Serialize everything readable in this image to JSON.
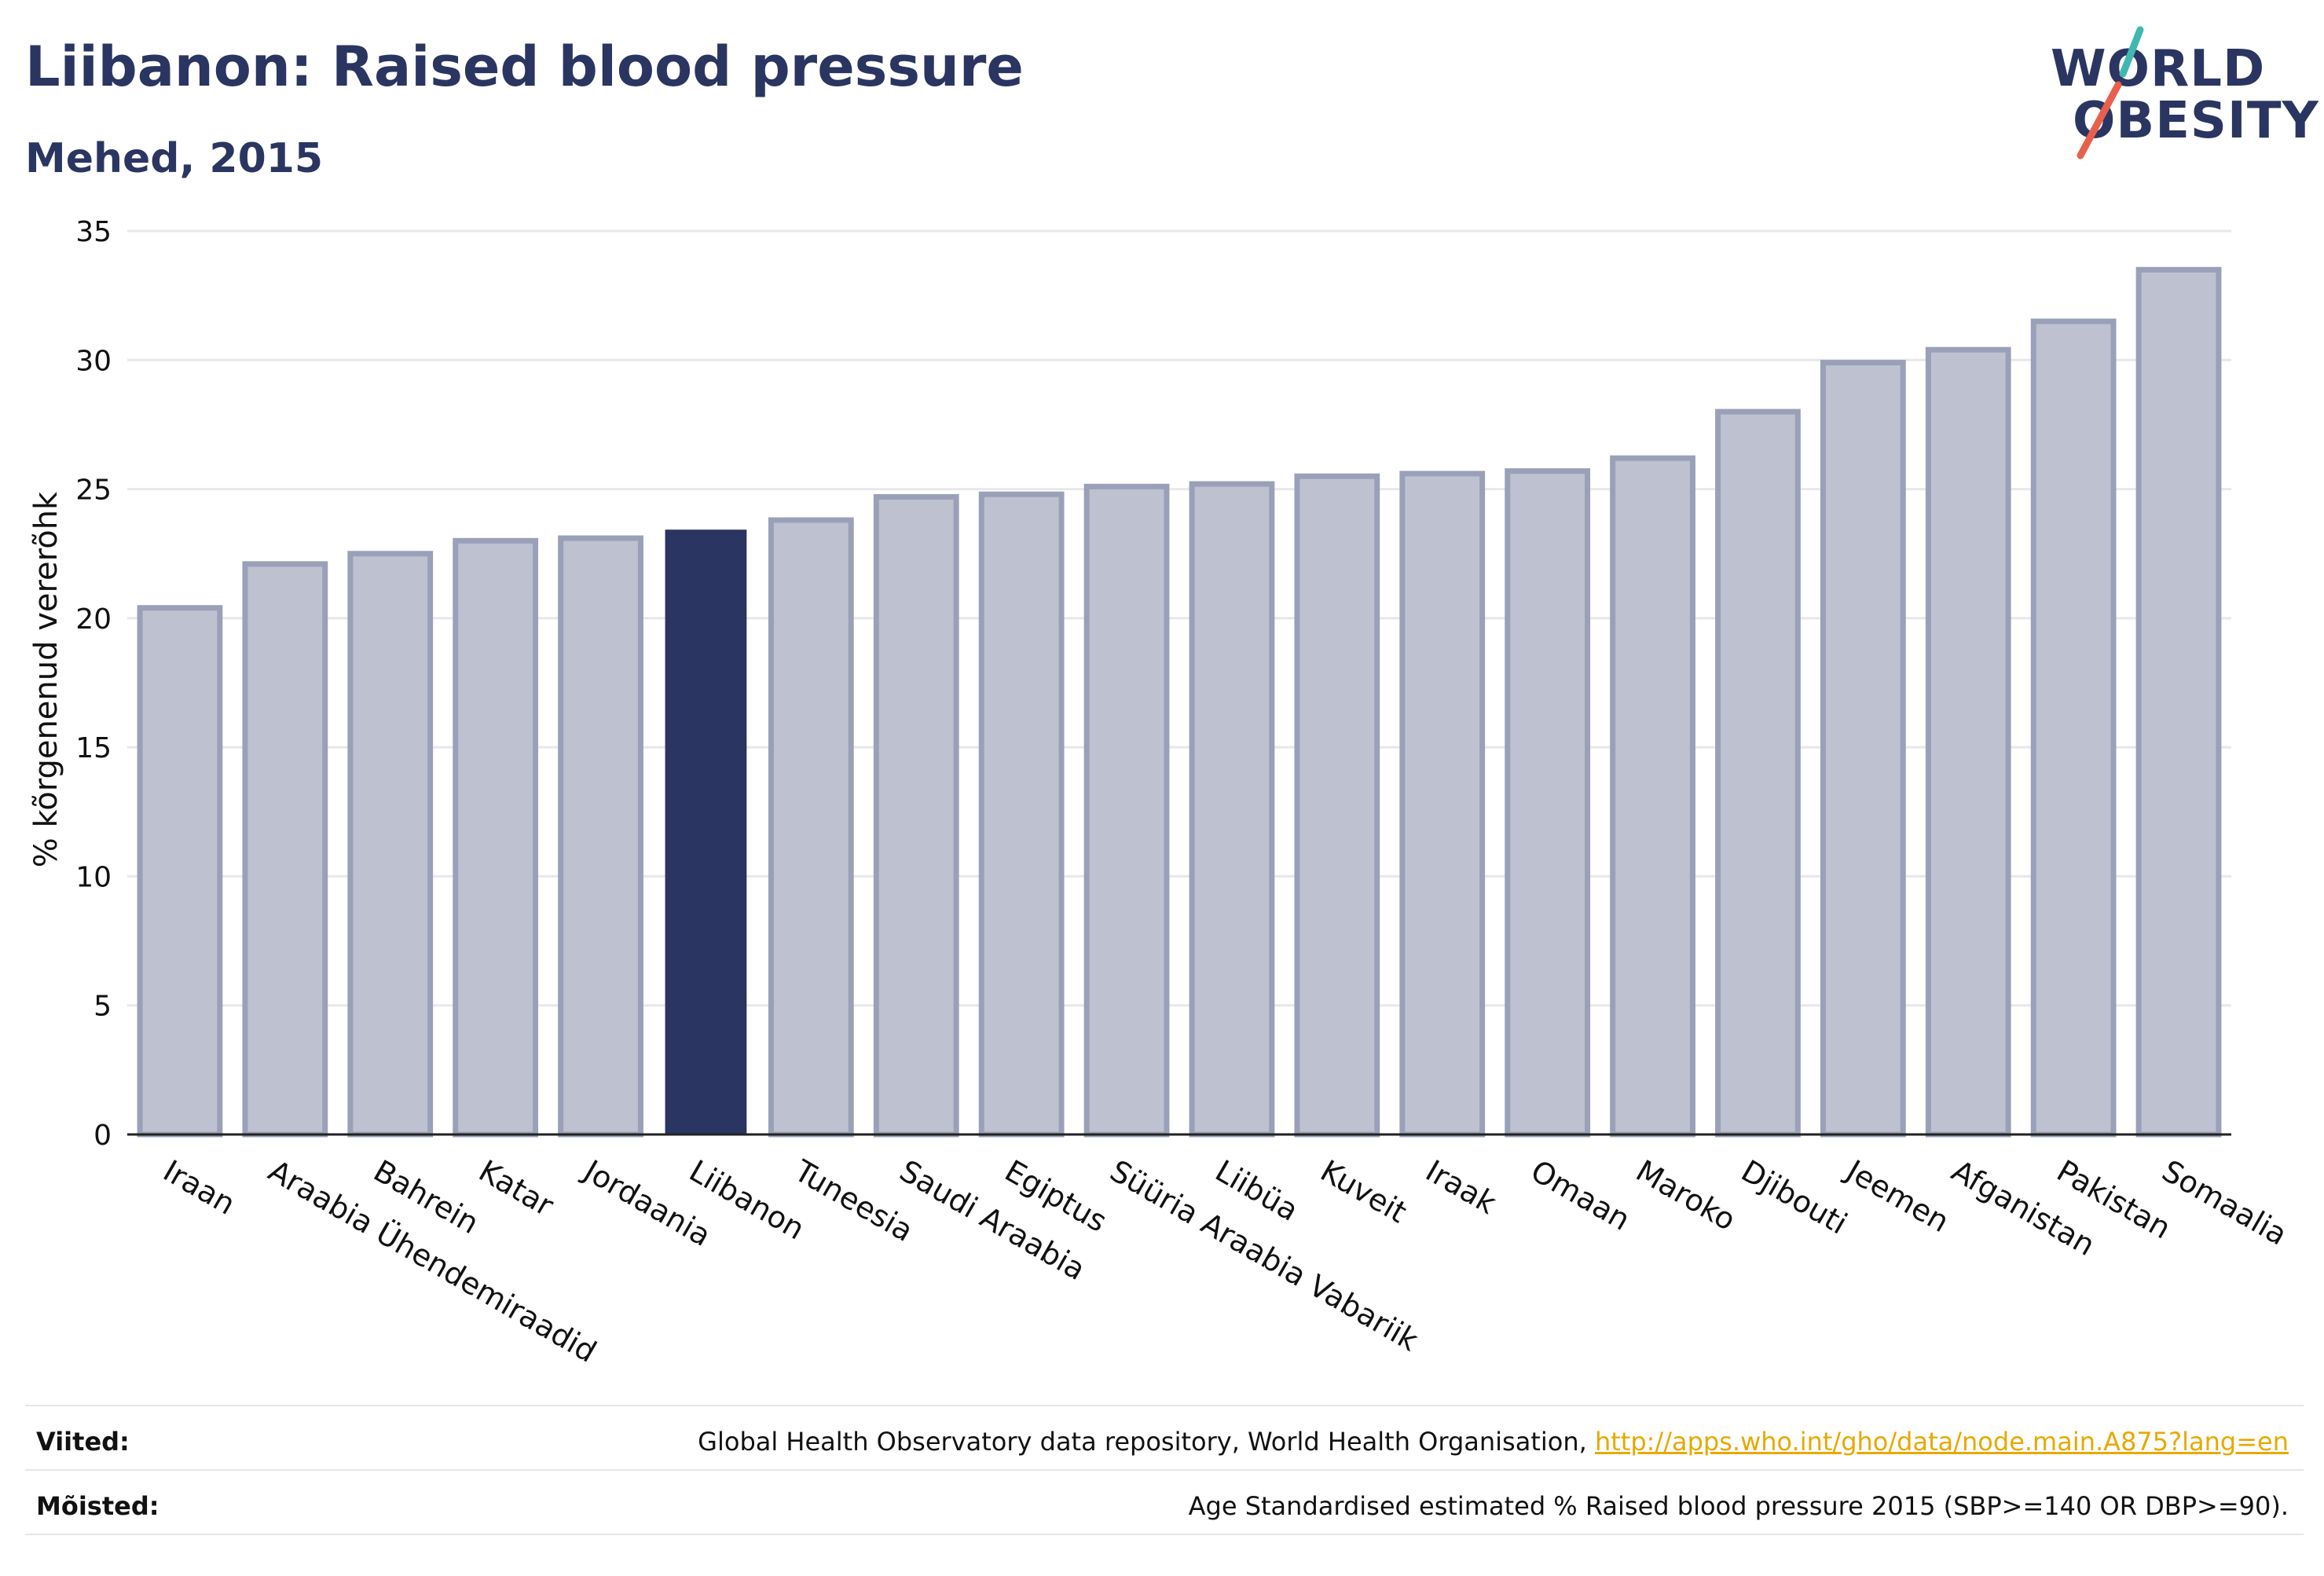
{
  "header": {
    "title": "Liibanon: Raised blood pressure",
    "subtitle": "Mehed, 2015"
  },
  "logo": {
    "line1": "WORLD",
    "line2": "OBESITY",
    "colors": {
      "text": "#2b3561",
      "slash_top": "#3fb8b0",
      "slash_bottom": "#e8604c"
    }
  },
  "chart_data": {
    "type": "bar",
    "title": "Liibanon: Raised blood pressure",
    "subtitle": "Mehed, 2015",
    "xlabel": "",
    "ylabel": "% kõrgenenud vererõhk",
    "ylim": [
      0,
      35
    ],
    "yticks": [
      0,
      5,
      10,
      15,
      20,
      25,
      30,
      35
    ],
    "grid": true,
    "highlight": "Liibanon",
    "colors": {
      "bar": "#bec1d0",
      "bar_border": "#9aa0b8",
      "highlight": "#2b3561"
    },
    "categories": [
      "Iraan",
      "Araabia Ühendemiraadid",
      "Bahrein",
      "Katar",
      "Jordaania",
      "Liibanon",
      "Tuneesia",
      "Saudi Araabia",
      "Egiptus",
      "Süüria Araabia Vabariik",
      "Liibüa",
      "Kuveit",
      "Iraak",
      "Omaan",
      "Maroko",
      "Djibouti",
      "Jeemen",
      "Afganistan",
      "Pakistan",
      "Somaalia"
    ],
    "values": [
      20.4,
      22.1,
      22.5,
      23.0,
      23.1,
      23.4,
      23.8,
      24.7,
      24.8,
      25.1,
      25.2,
      25.5,
      25.6,
      25.7,
      26.2,
      28.0,
      29.9,
      30.4,
      31.5,
      33.5
    ]
  },
  "footer": {
    "sources_label": "Viited:",
    "sources_text": "Global Health Observatory data repository, World Health Organisation, ",
    "sources_link": "http://apps.who.int/gho/data/node.main.A875?lang=en",
    "definitions_label": "Mõisted:",
    "definitions_text": "Age Standardised estimated % Raised blood pressure 2015 (SBP>=140 OR DBP>=90)."
  }
}
